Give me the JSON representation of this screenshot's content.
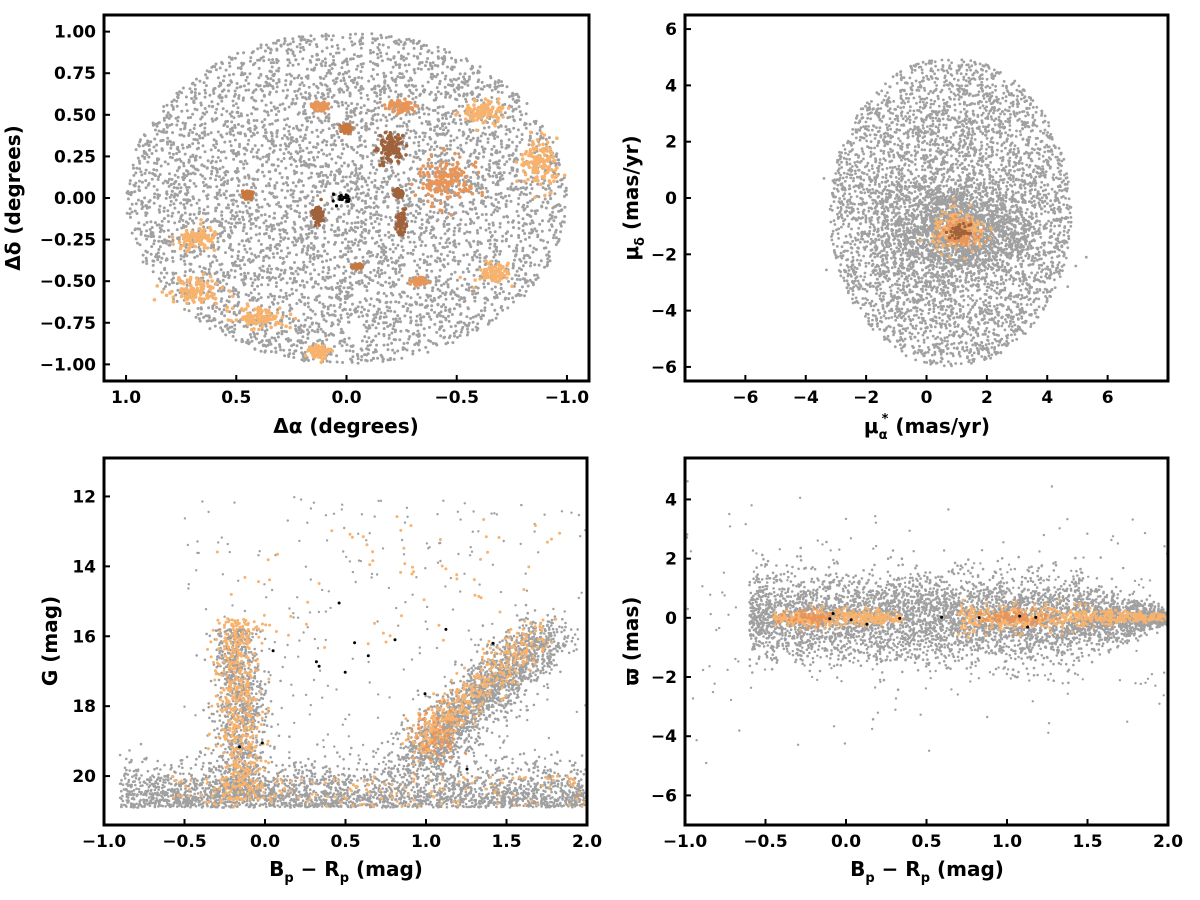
{
  "chart_data": [
    {
      "panel": "top-left",
      "type": "scatter",
      "xlabel_main": "Δα",
      "xlabel_unit": "(degrees)",
      "ylabel_main": "Δδ",
      "ylabel_unit": "(degrees)",
      "xlim": [
        1.1,
        -1.1
      ],
      "ylim": [
        -1.1,
        1.1
      ],
      "xinverted": true,
      "xticks": [
        "1.0",
        "0.5",
        "0.0",
        "−0.5",
        "−1.0"
      ],
      "xtick_values": [
        1.0,
        0.5,
        0.0,
        -0.5,
        -1.0
      ],
      "yticks": [
        "1.00",
        "0.75",
        "0.50",
        "0.25",
        "0.00",
        "−0.25",
        "−0.50",
        "−0.75",
        "−1.00"
      ],
      "ytick_values": [
        1.0,
        0.75,
        0.5,
        0.25,
        0.0,
        -0.25,
        -0.5,
        -0.75,
        -1.0
      ],
      "field_radius": 1.0,
      "clumps": [
        {
          "color": "#f7b36e",
          "center": [
            -0.62,
            0.52
          ],
          "spread": [
            0.08,
            0.06
          ]
        },
        {
          "color": "#f7b36e",
          "center": [
            -0.87,
            0.2
          ],
          "spread": [
            0.07,
            0.12
          ]
        },
        {
          "color": "#f7b36e",
          "center": [
            0.68,
            -0.25
          ],
          "spread": [
            0.08,
            0.06
          ]
        },
        {
          "color": "#f7b36e",
          "center": [
            0.68,
            -0.55
          ],
          "spread": [
            0.1,
            0.06
          ]
        },
        {
          "color": "#f7b36e",
          "center": [
            0.4,
            -0.72
          ],
          "spread": [
            0.1,
            0.05
          ]
        },
        {
          "color": "#f7b36e",
          "center": [
            0.12,
            -0.93
          ],
          "spread": [
            0.04,
            0.04
          ]
        },
        {
          "color": "#f7b36e",
          "center": [
            -0.67,
            -0.45
          ],
          "spread": [
            0.06,
            0.05
          ]
        },
        {
          "color": "#e8955a",
          "center": [
            -0.45,
            0.1
          ],
          "spread": [
            0.1,
            0.12
          ]
        },
        {
          "color": "#e8955a",
          "center": [
            -0.25,
            0.55
          ],
          "spread": [
            0.05,
            0.03
          ]
        },
        {
          "color": "#e8955a",
          "center": [
            0.12,
            0.55
          ],
          "spread": [
            0.03,
            0.02
          ]
        },
        {
          "color": "#e8955a",
          "center": [
            -0.33,
            -0.5
          ],
          "spread": [
            0.03,
            0.02
          ]
        },
        {
          "color": "#c8783f",
          "center": [
            0.45,
            0.02
          ],
          "spread": [
            0.02,
            0.02
          ]
        },
        {
          "color": "#c8783f",
          "center": [
            0.0,
            0.42
          ],
          "spread": [
            0.02,
            0.02
          ]
        },
        {
          "color": "#c8783f",
          "center": [
            -0.05,
            -0.41
          ],
          "spread": [
            0.02,
            0.01
          ]
        },
        {
          "color": "#a0623a",
          "center": [
            -0.2,
            0.3
          ],
          "spread": [
            0.05,
            0.08
          ]
        },
        {
          "color": "#a0623a",
          "center": [
            0.13,
            -0.1
          ],
          "spread": [
            0.02,
            0.05
          ]
        },
        {
          "color": "#a0623a",
          "center": [
            -0.24,
            0.03
          ],
          "spread": [
            0.02,
            0.02
          ]
        },
        {
          "color": "#a0623a",
          "center": [
            -0.25,
            -0.15
          ],
          "spread": [
            0.02,
            0.05
          ]
        },
        {
          "color": "#000000",
          "center": [
            0.02,
            0.0
          ],
          "spread": [
            0.04,
            0.03
          ]
        }
      ]
    },
    {
      "panel": "top-right",
      "type": "scatter",
      "xlabel_main": "μ",
      "xlabel_sub": "α",
      "xlabel_sup": "*",
      "xlabel_unit": "(mas/yr)",
      "ylabel_main": "μ",
      "ylabel_sub": "δ",
      "ylabel_unit": "(mas/yr)",
      "xlim": [
        -8.0,
        8.0
      ],
      "ylim": [
        -6.5,
        6.5
      ],
      "xticks": [
        "−6",
        "−4",
        "−2",
        "0",
        "2",
        "4",
        "6"
      ],
      "xtick_values": [
        -6,
        -4,
        -2,
        0,
        2,
        4,
        6
      ],
      "yticks": [
        "6",
        "4",
        "2",
        "0",
        "−2",
        "−4",
        "−6"
      ],
      "ytick_values": [
        6,
        4,
        2,
        0,
        -2,
        -4,
        -6
      ],
      "field_radius": 5.0,
      "cluster_center": [
        1.1,
        -1.2
      ],
      "cluster_spread": [
        0.45,
        0.35
      ]
    },
    {
      "panel": "bottom-left",
      "type": "scatter",
      "xlabel_main": "B",
      "xlabel_sub1": "p",
      "xlabel_minus": " − R",
      "xlabel_sub2": "p",
      "xlabel_unit": "(mag)",
      "ylabel_main": "G",
      "ylabel_unit": "(mag)",
      "xlim": [
        -1.0,
        2.0
      ],
      "ylim": [
        10.9,
        21.4
      ],
      "yinverted": true,
      "xticks": [
        "−1.0",
        "−0.5",
        "0.0",
        "0.5",
        "1.0",
        "1.5",
        "2.0"
      ],
      "xtick_values": [
        -1.0,
        -0.5,
        0.0,
        0.5,
        1.0,
        1.5,
        2.0
      ],
      "yticks": [
        "20",
        "18",
        "16",
        "14",
        "12"
      ],
      "ytick_values": [
        20,
        18,
        16,
        14,
        12
      ]
    },
    {
      "panel": "bottom-right",
      "type": "scatter",
      "xlabel_main": "B",
      "xlabel_sub1": "p",
      "xlabel_minus": " − R",
      "xlabel_sub2": "p",
      "xlabel_unit": "(mag)",
      "ylabel_main": "ϖ",
      "ylabel_unit": "(mas)",
      "xlim": [
        -1.0,
        2.0
      ],
      "ylim": [
        -7.0,
        5.4
      ],
      "xticks": [
        "−1.0",
        "−0.5",
        "0.0",
        "0.5",
        "1.0",
        "1.5",
        "2.0"
      ],
      "xtick_values": [
        -1.0,
        -0.5,
        0.0,
        0.5,
        1.0,
        1.5,
        2.0
      ],
      "yticks": [
        "4",
        "2",
        "0",
        "−2",
        "−4",
        "−6"
      ],
      "ytick_values": [
        4,
        2,
        0,
        -2,
        -4,
        -6
      ]
    }
  ],
  "colors": {
    "field": "#a0a0a0",
    "member_light": "#f7b36e",
    "member_mid": "#e8955a",
    "member_dark": "#a0623a",
    "member_core": "#000000"
  }
}
